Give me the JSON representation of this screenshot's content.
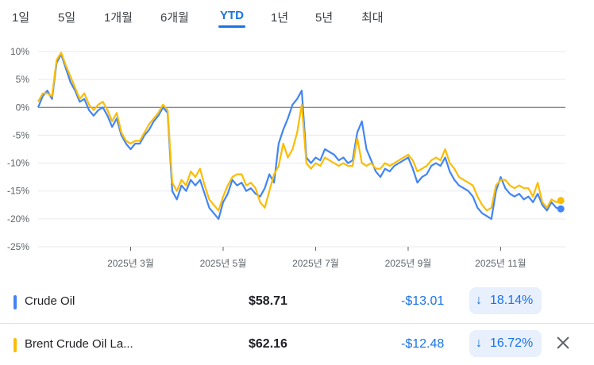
{
  "tabs": [
    {
      "label": "1일",
      "active": false
    },
    {
      "label": "5일",
      "active": false
    },
    {
      "label": "1개월",
      "active": false
    },
    {
      "label": "6개월",
      "active": false
    },
    {
      "label": "YTD",
      "active": true
    },
    {
      "label": "1년",
      "active": false
    },
    {
      "label": "5년",
      "active": false
    },
    {
      "label": "최대",
      "active": false
    }
  ],
  "chart_data": {
    "type": "line",
    "x_tick_labels": [
      "2025년 3월",
      "2025년 5월",
      "2025년 7월",
      "2025년 9월",
      "2025년 11월"
    ],
    "x_ticks": [
      2,
      4,
      6,
      8,
      10
    ],
    "xlim": [
      0,
      11.4
    ],
    "y_tick_labels": [
      "10%",
      "5%",
      "0%",
      "-5%",
      "-10%",
      "-15%",
      "-20%",
      "-25%"
    ],
    "y_ticks": [
      10,
      5,
      0,
      -5,
      -10,
      -15,
      -20,
      -25
    ],
    "ylim": [
      -25,
      10
    ],
    "grid": true,
    "series": [
      {
        "name": "Crude Oil",
        "color": "#4285f4",
        "points": [
          [
            0.0,
            0.0
          ],
          [
            0.1,
            2.0
          ],
          [
            0.2,
            3.0
          ],
          [
            0.3,
            1.5
          ],
          [
            0.4,
            8.0
          ],
          [
            0.5,
            9.5
          ],
          [
            0.6,
            7.0
          ],
          [
            0.7,
            4.5
          ],
          [
            0.8,
            3.0
          ],
          [
            0.9,
            1.0
          ],
          [
            1.0,
            1.5
          ],
          [
            1.1,
            -0.5
          ],
          [
            1.2,
            -1.5
          ],
          [
            1.3,
            -0.5
          ],
          [
            1.4,
            0.0
          ],
          [
            1.5,
            -1.5
          ],
          [
            1.6,
            -3.5
          ],
          [
            1.7,
            -2.0
          ],
          [
            1.8,
            -5.0
          ],
          [
            1.9,
            -6.5
          ],
          [
            2.0,
            -7.5
          ],
          [
            2.1,
            -6.5
          ],
          [
            2.2,
            -6.5
          ],
          [
            2.3,
            -5.0
          ],
          [
            2.4,
            -4.0
          ],
          [
            2.5,
            -2.5
          ],
          [
            2.6,
            -1.5
          ],
          [
            2.7,
            0.0
          ],
          [
            2.8,
            -1.0
          ],
          [
            2.9,
            -15.0
          ],
          [
            3.0,
            -16.5
          ],
          [
            3.1,
            -14.0
          ],
          [
            3.2,
            -15.0
          ],
          [
            3.3,
            -13.0
          ],
          [
            3.4,
            -14.0
          ],
          [
            3.5,
            -13.0
          ],
          [
            3.6,
            -15.5
          ],
          [
            3.7,
            -18.0
          ],
          [
            3.8,
            -19.0
          ],
          [
            3.9,
            -20.0
          ],
          [
            4.0,
            -17.0
          ],
          [
            4.1,
            -15.5
          ],
          [
            4.2,
            -13.0
          ],
          [
            4.3,
            -14.0
          ],
          [
            4.4,
            -13.5
          ],
          [
            4.5,
            -15.0
          ],
          [
            4.6,
            -14.5
          ],
          [
            4.7,
            -15.5
          ],
          [
            4.8,
            -16.0
          ],
          [
            4.9,
            -14.5
          ],
          [
            5.0,
            -12.0
          ],
          [
            5.1,
            -13.5
          ],
          [
            5.2,
            -6.5
          ],
          [
            5.3,
            -4.0
          ],
          [
            5.4,
            -2.0
          ],
          [
            5.5,
            0.5
          ],
          [
            5.6,
            1.5
          ],
          [
            5.7,
            3.0
          ],
          [
            5.8,
            -9.0
          ],
          [
            5.9,
            -10.0
          ],
          [
            6.0,
            -9.0
          ],
          [
            6.1,
            -9.5
          ],
          [
            6.2,
            -7.5
          ],
          [
            6.3,
            -8.0
          ],
          [
            6.4,
            -8.5
          ],
          [
            6.5,
            -9.5
          ],
          [
            6.6,
            -9.0
          ],
          [
            6.7,
            -10.0
          ],
          [
            6.8,
            -9.5
          ],
          [
            6.9,
            -4.5
          ],
          [
            7.0,
            -2.5
          ],
          [
            7.1,
            -7.5
          ],
          [
            7.2,
            -9.5
          ],
          [
            7.3,
            -11.5
          ],
          [
            7.4,
            -12.5
          ],
          [
            7.5,
            -11.0
          ],
          [
            7.6,
            -11.5
          ],
          [
            7.7,
            -10.5
          ],
          [
            7.8,
            -10.0
          ],
          [
            7.9,
            -9.5
          ],
          [
            8.0,
            -9.0
          ],
          [
            8.1,
            -11.0
          ],
          [
            8.2,
            -13.5
          ],
          [
            8.3,
            -12.5
          ],
          [
            8.4,
            -12.0
          ],
          [
            8.5,
            -10.5
          ],
          [
            8.6,
            -10.0
          ],
          [
            8.7,
            -10.5
          ],
          [
            8.8,
            -9.0
          ],
          [
            8.9,
            -11.5
          ],
          [
            9.0,
            -13.0
          ],
          [
            9.1,
            -14.0
          ],
          [
            9.2,
            -14.5
          ],
          [
            9.3,
            -15.0
          ],
          [
            9.4,
            -16.0
          ],
          [
            9.5,
            -18.0
          ],
          [
            9.6,
            -19.0
          ],
          [
            9.7,
            -19.5
          ],
          [
            9.8,
            -20.0
          ],
          [
            9.9,
            -15.0
          ],
          [
            10.0,
            -12.5
          ],
          [
            10.1,
            -14.5
          ],
          [
            10.2,
            -15.5
          ],
          [
            10.3,
            -16.0
          ],
          [
            10.4,
            -15.5
          ],
          [
            10.5,
            -16.5
          ],
          [
            10.6,
            -16.0
          ],
          [
            10.7,
            -17.0
          ],
          [
            10.8,
            -15.5
          ],
          [
            10.9,
            -17.5
          ],
          [
            11.0,
            -18.5
          ],
          [
            11.1,
            -17.0
          ],
          [
            11.2,
            -18.0
          ],
          [
            11.3,
            -18.2
          ]
        ]
      },
      {
        "name": "Brent Crude Oil La...",
        "color": "#fbbc04",
        "points": [
          [
            0.0,
            1.0
          ],
          [
            0.1,
            2.5
          ],
          [
            0.2,
            2.5
          ],
          [
            0.3,
            2.0
          ],
          [
            0.4,
            8.5
          ],
          [
            0.5,
            9.8
          ],
          [
            0.6,
            7.5
          ],
          [
            0.7,
            5.5
          ],
          [
            0.8,
            3.5
          ],
          [
            0.9,
            1.5
          ],
          [
            1.0,
            2.5
          ],
          [
            1.1,
            0.5
          ],
          [
            1.2,
            -0.5
          ],
          [
            1.3,
            0.5
          ],
          [
            1.4,
            1.0
          ],
          [
            1.5,
            -0.5
          ],
          [
            1.6,
            -2.5
          ],
          [
            1.7,
            -1.0
          ],
          [
            1.8,
            -4.5
          ],
          [
            1.9,
            -6.0
          ],
          [
            2.0,
            -6.5
          ],
          [
            2.1,
            -6.0
          ],
          [
            2.2,
            -6.0
          ],
          [
            2.3,
            -4.5
          ],
          [
            2.4,
            -3.0
          ],
          [
            2.5,
            -2.0
          ],
          [
            2.6,
            -1.0
          ],
          [
            2.7,
            0.5
          ],
          [
            2.8,
            -0.5
          ],
          [
            2.9,
            -13.5
          ],
          [
            3.0,
            -15.0
          ],
          [
            3.1,
            -13.0
          ],
          [
            3.2,
            -14.0
          ],
          [
            3.3,
            -11.5
          ],
          [
            3.4,
            -12.5
          ],
          [
            3.5,
            -11.0
          ],
          [
            3.6,
            -14.0
          ],
          [
            3.7,
            -16.5
          ],
          [
            3.8,
            -17.5
          ],
          [
            3.9,
            -18.5
          ],
          [
            4.0,
            -16.0
          ],
          [
            4.1,
            -14.0
          ],
          [
            4.2,
            -12.5
          ],
          [
            4.3,
            -12.0
          ],
          [
            4.4,
            -12.0
          ],
          [
            4.5,
            -14.0
          ],
          [
            4.6,
            -13.5
          ],
          [
            4.7,
            -14.5
          ],
          [
            4.8,
            -17.0
          ],
          [
            4.9,
            -18.0
          ],
          [
            5.0,
            -15.0
          ],
          [
            5.1,
            -12.0
          ],
          [
            5.2,
            -10.5
          ],
          [
            5.3,
            -6.5
          ],
          [
            5.4,
            -9.0
          ],
          [
            5.5,
            -7.5
          ],
          [
            5.6,
            -4.5
          ],
          [
            5.7,
            0.5
          ],
          [
            5.8,
            -10.0
          ],
          [
            5.9,
            -11.0
          ],
          [
            6.0,
            -10.0
          ],
          [
            6.1,
            -10.5
          ],
          [
            6.2,
            -9.0
          ],
          [
            6.3,
            -9.5
          ],
          [
            6.4,
            -10.0
          ],
          [
            6.5,
            -10.5
          ],
          [
            6.6,
            -10.0
          ],
          [
            6.7,
            -10.5
          ],
          [
            6.8,
            -10.5
          ],
          [
            6.9,
            -5.5
          ],
          [
            7.0,
            -10.0
          ],
          [
            7.1,
            -10.5
          ],
          [
            7.2,
            -10.0
          ],
          [
            7.3,
            -11.0
          ],
          [
            7.4,
            -11.0
          ],
          [
            7.5,
            -10.0
          ],
          [
            7.6,
            -10.5
          ],
          [
            7.7,
            -10.0
          ],
          [
            7.8,
            -9.5
          ],
          [
            7.9,
            -9.0
          ],
          [
            8.0,
            -8.5
          ],
          [
            8.1,
            -9.5
          ],
          [
            8.2,
            -11.5
          ],
          [
            8.3,
            -11.0
          ],
          [
            8.4,
            -10.5
          ],
          [
            8.5,
            -9.5
          ],
          [
            8.6,
            -9.0
          ],
          [
            8.7,
            -9.5
          ],
          [
            8.8,
            -7.5
          ],
          [
            8.9,
            -10.0
          ],
          [
            9.0,
            -11.0
          ],
          [
            9.1,
            -12.5
          ],
          [
            9.2,
            -13.0
          ],
          [
            9.3,
            -13.5
          ],
          [
            9.4,
            -14.0
          ],
          [
            9.5,
            -16.0
          ],
          [
            9.6,
            -17.5
          ],
          [
            9.7,
            -18.5
          ],
          [
            9.8,
            -18.0
          ],
          [
            9.9,
            -14.0
          ],
          [
            10.0,
            -13.0
          ],
          [
            10.1,
            -13.0
          ],
          [
            10.2,
            -14.0
          ],
          [
            10.3,
            -14.5
          ],
          [
            10.4,
            -14.0
          ],
          [
            10.5,
            -14.5
          ],
          [
            10.6,
            -14.5
          ],
          [
            10.7,
            -16.0
          ],
          [
            10.8,
            -13.5
          ],
          [
            10.9,
            -17.0
          ],
          [
            11.0,
            -18.0
          ],
          [
            11.1,
            -16.5
          ],
          [
            11.2,
            -17.0
          ],
          [
            11.3,
            -16.7
          ]
        ]
      }
    ]
  },
  "legend": [
    {
      "name": "Crude Oil",
      "color": "#4285f4",
      "price": "$58.71",
      "change": "-$13.01",
      "arrow": "↓",
      "percent": "18.14%"
    },
    {
      "name": "Brent Crude Oil La...",
      "color": "#fbbc04",
      "price": "$62.16",
      "change": "-$12.48",
      "arrow": "↓",
      "percent": "16.72%"
    }
  ]
}
